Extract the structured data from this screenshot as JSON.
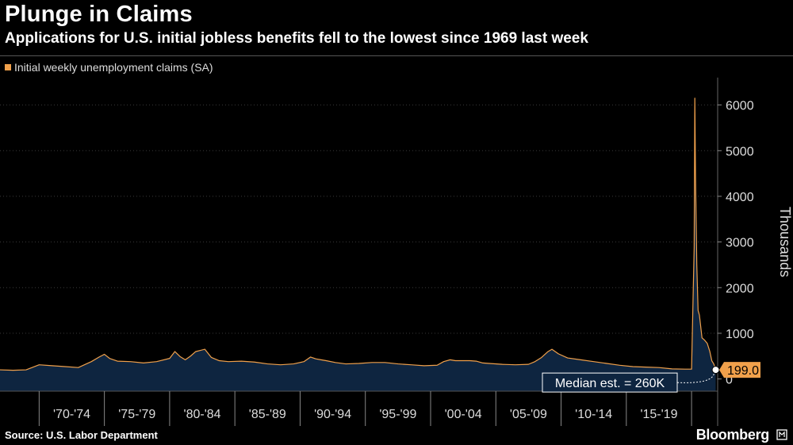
{
  "header": {
    "title": "Plunge in Claims",
    "subtitle": "Applications for U.S. initial jobless benefits fell to the lowest since 1969 last week"
  },
  "legend": {
    "label": "Initial weekly unemployment claims (SA)",
    "color": "#f0a04b"
  },
  "footer": {
    "source": "Source: U.S. Labor Department",
    "brand": "Bloomberg"
  },
  "chart_data": {
    "type": "area",
    "title": "Plunge in Claims",
    "subtitle": "Applications for U.S. initial jobless benefits fell to the lowest since 1969 last week",
    "xlabel": "",
    "ylabel": "Thousands",
    "ylim": [
      -250,
      6600
    ],
    "xlim": [
      1967,
      2022
    ],
    "yticks": [
      0,
      1000,
      2000,
      3000,
      4000,
      5000,
      6000
    ],
    "ytick_labels": [
      "0",
      "1000",
      "2000",
      "3000",
      "4000",
      "5000",
      "6000"
    ],
    "xticks": [
      "'70-'74",
      "'75-'79",
      "'80-'84",
      "'85-'89",
      "'90-'94",
      "'95-'99",
      "'00-'04",
      "'05-'09",
      "'10-'14",
      "'15-'19"
    ],
    "series": [
      {
        "name": "Initial weekly unemployment claims (SA)",
        "color": "#f0a04b",
        "fill": "#0e2540",
        "x": [
          1967.0,
          1968.0,
          1969.0,
          1970.0,
          1971.0,
          1972.0,
          1973.0,
          1974.0,
          1974.6,
          1975.0,
          1975.4,
          1976.0,
          1977.0,
          1978.0,
          1979.0,
          1980.0,
          1980.4,
          1980.8,
          1981.2,
          1981.6,
          1982.0,
          1982.7,
          1983.2,
          1983.8,
          1984.5,
          1985.5,
          1986.5,
          1987.5,
          1988.5,
          1989.5,
          1990.3,
          1990.8,
          1991.2,
          1991.6,
          1992.0,
          1992.7,
          1993.5,
          1994.5,
          1995.5,
          1996.5,
          1997.5,
          1998.5,
          1999.5,
          2000.5,
          2001.0,
          2001.5,
          2001.9,
          2002.5,
          2003.0,
          2003.5,
          2004.0,
          2004.5,
          2005.5,
          2006.5,
          2007.5,
          2008.0,
          2008.5,
          2009.0,
          2009.3,
          2009.8,
          2010.5,
          2011.5,
          2012.5,
          2013.5,
          2014.5,
          2015.5,
          2016.5,
          2017.5,
          2018.5,
          2019.5,
          2020.0,
          2020.2,
          2020.25,
          2020.3,
          2020.4,
          2020.5,
          2020.6,
          2020.8,
          2021.0,
          2021.2,
          2021.4,
          2021.55,
          2021.7,
          2021.85
        ],
        "values": [
          200,
          190,
          200,
          310,
          290,
          270,
          250,
          380,
          480,
          540,
          450,
          390,
          380,
          350,
          380,
          450,
          600,
          490,
          420,
          500,
          600,
          650,
          470,
          400,
          380,
          390,
          370,
          330,
          310,
          330,
          380,
          480,
          440,
          420,
          400,
          360,
          330,
          340,
          360,
          360,
          330,
          310,
          290,
          300,
          380,
          420,
          400,
          400,
          400,
          390,
          350,
          340,
          320,
          310,
          320,
          380,
          470,
          600,
          650,
          550,
          460,
          420,
          380,
          340,
          300,
          270,
          260,
          250,
          220,
          215,
          215,
          2900,
          6150,
          4500,
          2500,
          1500,
          1400,
          900,
          850,
          780,
          600,
          400,
          330,
          199
        ]
      }
    ],
    "annotations": {
      "last_value_label": "199.0",
      "median_label": "Median est. = 260K"
    }
  }
}
